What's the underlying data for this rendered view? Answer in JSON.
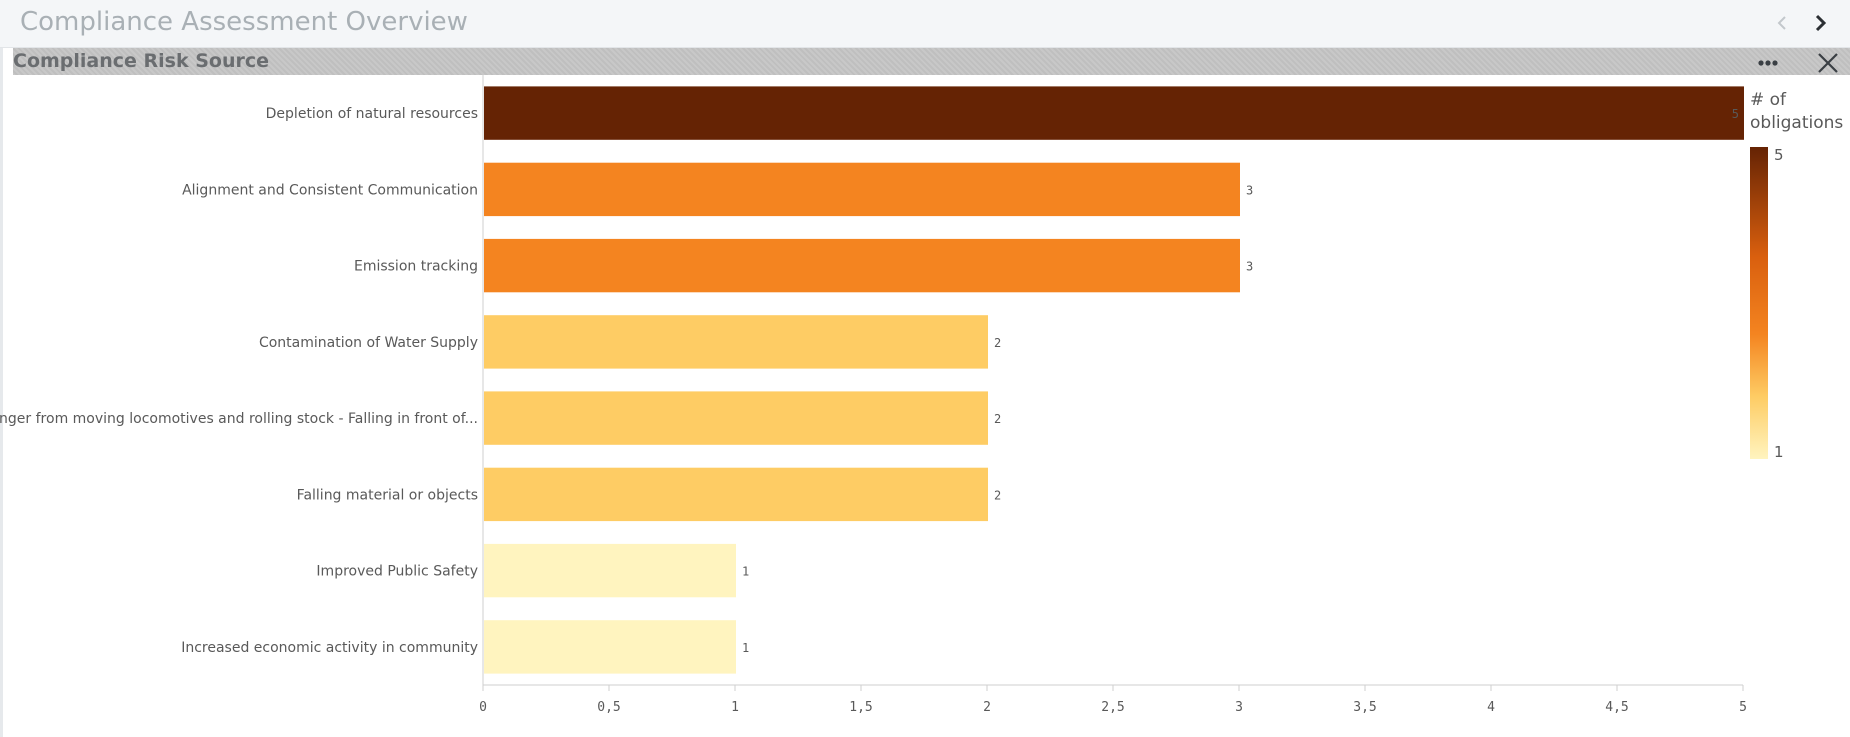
{
  "app": {
    "title": "Compliance Assessment Overview"
  },
  "panel": {
    "title": "Compliance Risk Source"
  },
  "icons": {
    "prev": "chevron-left-icon",
    "next": "chevron-right-icon",
    "more": "more-horizontal-icon",
    "close": "close-icon"
  },
  "colors": {
    "dark": "#652304",
    "mid": "#f48420",
    "light": "#fecc64",
    "pale": "#fff4bf"
  },
  "chart_data": {
    "type": "bar",
    "orientation": "horizontal",
    "categories": [
      "Depletion of natural resources",
      "Alignment and Consistent Communication",
      "Emission tracking",
      "Contamination of Water Supply",
      "Danger from moving locomotives and rolling stock - Falling in front of...",
      "Falling material or objects",
      "Improved Public Safety",
      "Increased economic activity in community"
    ],
    "values": [
      5,
      3,
      3,
      2,
      2,
      2,
      1,
      1
    ],
    "value_labels": [
      "5",
      "3",
      "3",
      "2",
      "2",
      "2",
      "1",
      "1"
    ],
    "xlim": [
      0,
      5
    ],
    "x_ticks": [
      "0",
      "0,5",
      "1",
      "1,5",
      "2",
      "2,5",
      "3",
      "3,5",
      "4",
      "4,5",
      "5"
    ],
    "grid": false,
    "legend": {
      "title_line1": "# of",
      "title_line2": "obligations",
      "max_label": "5",
      "min_label": "1",
      "placement": "right"
    }
  }
}
